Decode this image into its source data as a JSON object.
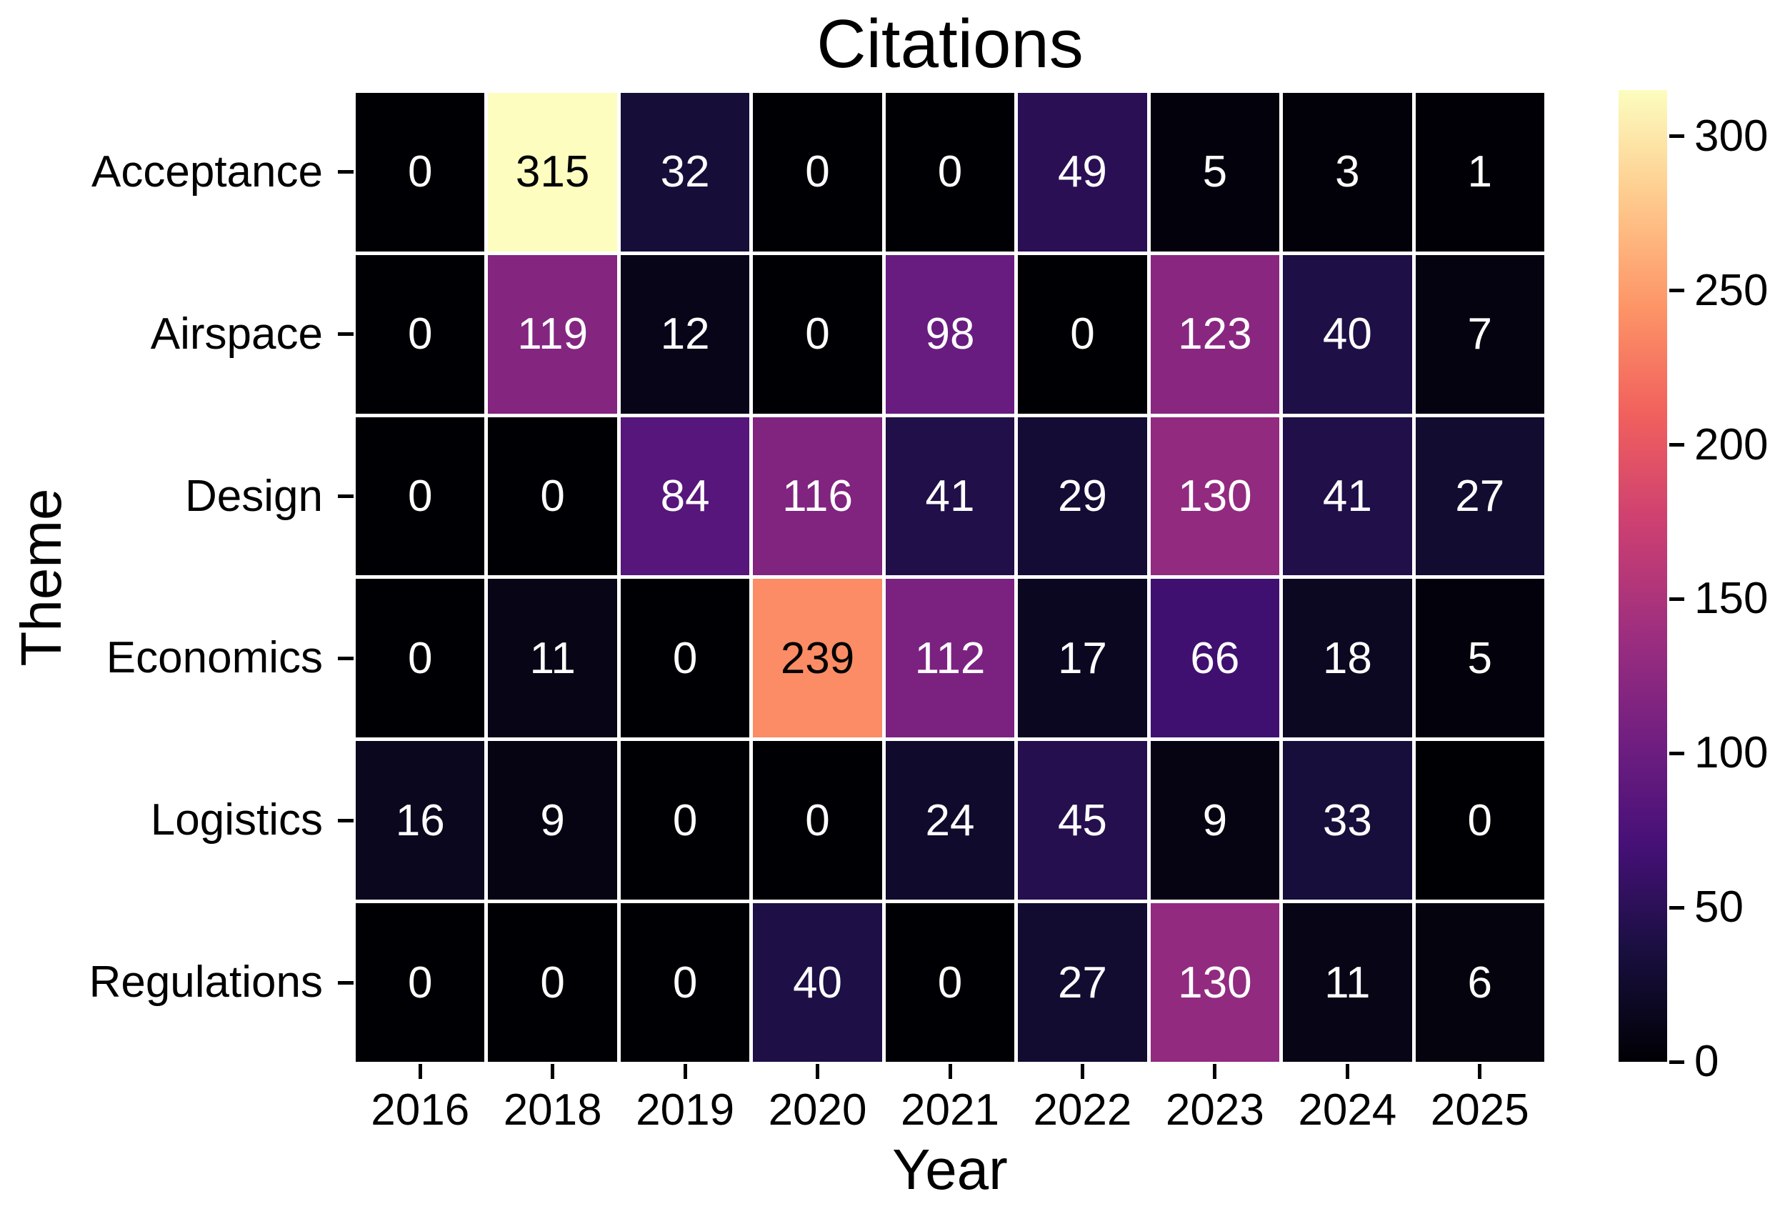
{
  "chart_data": {
    "type": "heatmap",
    "title": "Citations",
    "xlabel": "Year",
    "ylabel": "Theme",
    "columns": [
      "2016",
      "2018",
      "2019",
      "2020",
      "2021",
      "2022",
      "2023",
      "2024",
      "2025"
    ],
    "rows": [
      "Acceptance",
      "Airspace",
      "Design",
      "Economics",
      "Logistics",
      "Regulations"
    ],
    "values": [
      [
        0,
        315,
        32,
        0,
        0,
        49,
        5,
        3,
        1
      ],
      [
        0,
        119,
        12,
        0,
        98,
        0,
        123,
        40,
        7
      ],
      [
        0,
        0,
        84,
        116,
        41,
        29,
        130,
        41,
        27
      ],
      [
        0,
        11,
        0,
        239,
        112,
        17,
        66,
        18,
        5
      ],
      [
        16,
        9,
        0,
        0,
        24,
        45,
        9,
        33,
        0
      ],
      [
        0,
        0,
        0,
        40,
        0,
        27,
        130,
        11,
        6
      ]
    ],
    "vmin": 0,
    "vmax": 315,
    "annotations_shown": true,
    "grid_lines": "white",
    "legend_position": "right-colorbar",
    "colorbar_ticks": [
      0,
      50,
      100,
      150,
      200,
      250,
      300
    ],
    "colormap": {
      "name": "magma",
      "anchors": [
        "#000004",
        "#180f3e",
        "#451077",
        "#721f81",
        "#9f2f7f",
        "#cd4071",
        "#f1605d",
        "#fd9567",
        "#feca8d",
        "#fcfdbf"
      ]
    },
    "annotation_color_on_dark": "#ffffff",
    "annotation_color_on_light": "#000000",
    "text_color": "#000000",
    "background_color": "#ffffff"
  }
}
